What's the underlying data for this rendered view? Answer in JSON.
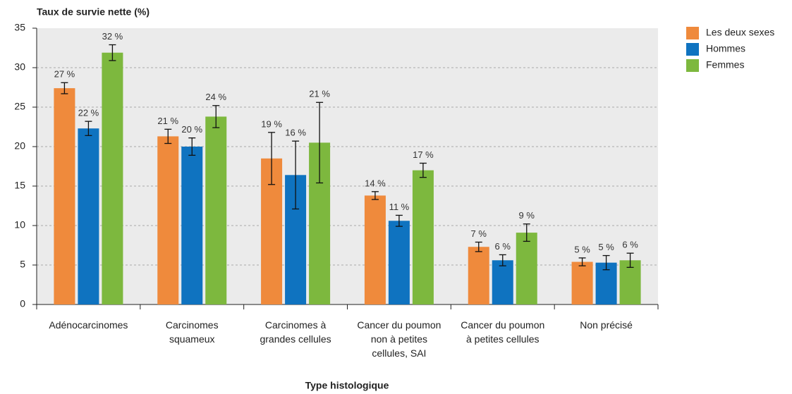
{
  "chart_data": {
    "type": "bar",
    "y_label": "Taux de survie nette (%)",
    "x_label": "Type histologique",
    "categories": [
      [
        "Adénocarcinomes"
      ],
      [
        "Carcinomes",
        "squameux"
      ],
      [
        "Carcinomes à",
        "grandes cellules"
      ],
      [
        "Cancer du poumon",
        "non à petites",
        "cellules, SAI"
      ],
      [
        "Cancer du poumon",
        "à petites cellules"
      ],
      [
        "Non précisé"
      ]
    ],
    "series": [
      {
        "name": "Les deux sexes",
        "color": "#ef8a3c",
        "values": [
          27.4,
          21.3,
          18.5,
          13.8,
          7.3,
          5.4
        ],
        "errors": [
          0.7,
          0.9,
          3.3,
          0.5,
          0.6,
          0.5
        ],
        "value_labels": [
          "27 %",
          "21 %",
          "19 %",
          "14 %",
          "7 %",
          "5 %"
        ]
      },
      {
        "name": "Hommes",
        "color": "#0f73c0",
        "values": [
          22.3,
          20.0,
          16.4,
          10.6,
          5.6,
          5.3
        ],
        "errors": [
          0.9,
          1.1,
          4.3,
          0.7,
          0.7,
          0.9
        ],
        "value_labels": [
          "22 %",
          "20 %",
          "16 %",
          "11 %",
          "6 %",
          "5 %"
        ]
      },
      {
        "name": "Femmes",
        "color": "#7db83e",
        "values": [
          31.9,
          23.8,
          20.5,
          17.0,
          9.1,
          5.6
        ],
        "errors": [
          1.0,
          1.4,
          5.1,
          0.9,
          1.1,
          0.9
        ],
        "value_labels": [
          "32 %",
          "24 %",
          "21 %",
          "17 %",
          "9 %",
          "6 %"
        ]
      }
    ],
    "ylim": [
      0,
      35
    ],
    "yticks": [
      0,
      5,
      10,
      15,
      20,
      25,
      30,
      35
    ],
    "grid": true,
    "legend": "right"
  }
}
